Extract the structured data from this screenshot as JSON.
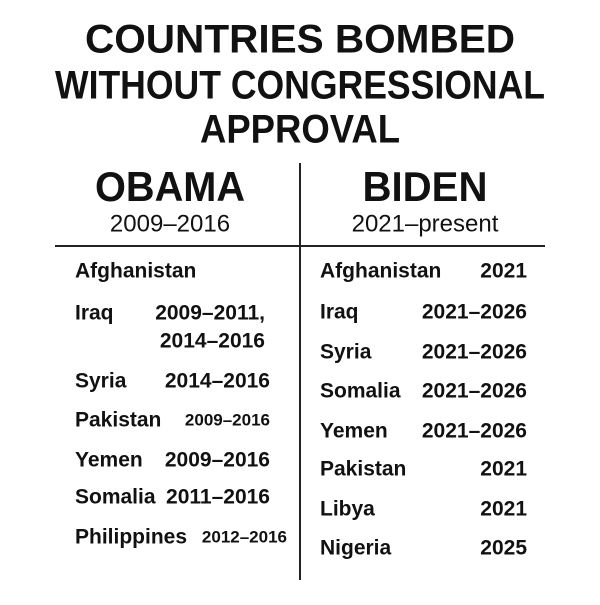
{
  "header": {
    "title_lines": [
      "COUNTRIES BOMBED",
      "WITHOUT CONGRESSIONAL",
      "APPROVAL"
    ]
  },
  "columns": [
    {
      "name": "OBAMA",
      "period": "2009–2016",
      "rows": [
        {
          "country": "Afghanistan",
          "years": []
        },
        {
          "country": "Iraq",
          "years": [
            "2009–2011,",
            "2014–2016"
          ]
        },
        {
          "country": "Syria",
          "years": [
            "2014–2016"
          ]
        },
        {
          "country": "Pakistan",
          "years": [
            "2009–2016"
          ]
        },
        {
          "country": "Yemen",
          "years": [
            "2009–2016"
          ]
        },
        {
          "country": "Somalia",
          "years": [
            "2011–2016"
          ]
        },
        {
          "country": "Philippines",
          "years": [
            "2012–2016"
          ]
        }
      ]
    },
    {
      "name": "BIDEN",
      "period": "2021–present",
      "rows": [
        {
          "country": "Afghanistan",
          "years": [
            "2021"
          ]
        },
        {
          "country": "Iraq",
          "years": [
            "2021–2026"
          ]
        },
        {
          "country": "Syria",
          "years": [
            "2021–2026"
          ]
        },
        {
          "country": "Somalia",
          "years": [
            "2021–2026"
          ]
        },
        {
          "country": "Yemen",
          "years": [
            "2021–2026"
          ]
        },
        {
          "country": "Pakistan",
          "years": [
            "2021"
          ]
        },
        {
          "country": "Libya",
          "years": [
            "2021"
          ]
        },
        {
          "country": "Nigeria",
          "years": [
            "2025"
          ]
        }
      ]
    }
  ]
}
